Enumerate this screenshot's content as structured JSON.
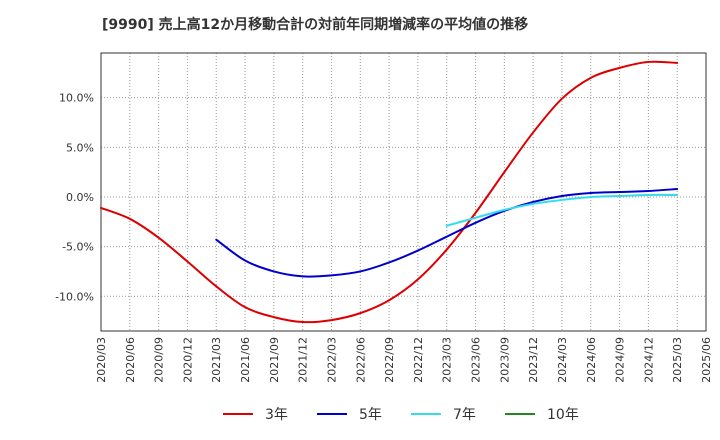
{
  "chart_data": {
    "type": "line",
    "title": "[9990]  売上高12か月移動合計の対前年同期増減率の平均値の推移",
    "xlabel": "",
    "ylabel": "",
    "ylim": [
      -13.5,
      14.5
    ],
    "yticks": [
      {
        "value": 10,
        "label": "10.0%"
      },
      {
        "value": 5,
        "label": "5.0%"
      },
      {
        "value": 0,
        "label": "0.0%"
      },
      {
        "value": -5,
        "label": "-5.0%"
      },
      {
        "value": -10,
        "label": "-10.0%"
      }
    ],
    "xticks": [
      "2020/03",
      "2020/06",
      "2020/09",
      "2020/12",
      "2021/03",
      "2021/06",
      "2021/09",
      "2021/12",
      "2022/03",
      "2022/06",
      "2022/09",
      "2022/12",
      "2023/03",
      "2023/06",
      "2023/09",
      "2023/12",
      "2024/03",
      "2024/06",
      "2024/09",
      "2024/12",
      "2025/03",
      "2025/06"
    ],
    "grid": true,
    "legend_position": "bottom",
    "series": [
      {
        "name": "3年",
        "color": "#dd0000",
        "points": [
          [
            "2020/03",
            -1.1
          ],
          [
            "2020/06",
            -2.2
          ],
          [
            "2020/09",
            -4.1
          ],
          [
            "2020/12",
            -6.5
          ],
          [
            "2021/03",
            -9.0
          ],
          [
            "2021/06",
            -11.1
          ],
          [
            "2021/09",
            -12.1
          ],
          [
            "2021/12",
            -12.6
          ],
          [
            "2022/03",
            -12.4
          ],
          [
            "2022/06",
            -11.7
          ],
          [
            "2022/09",
            -10.4
          ],
          [
            "2022/12",
            -8.3
          ],
          [
            "2023/03",
            -5.3
          ],
          [
            "2023/06",
            -1.6
          ],
          [
            "2023/09",
            2.5
          ],
          [
            "2023/12",
            6.5
          ],
          [
            "2024/03",
            9.9
          ],
          [
            "2024/06",
            12.0
          ],
          [
            "2024/09",
            13.0
          ],
          [
            "2024/12",
            13.6
          ],
          [
            "2025/03",
            13.5
          ]
        ]
      },
      {
        "name": "5年",
        "color": "#0000cc",
        "points": [
          [
            "2021/03",
            -4.3
          ],
          [
            "2021/06",
            -6.4
          ],
          [
            "2021/09",
            -7.5
          ],
          [
            "2021/12",
            -8.0
          ],
          [
            "2022/03",
            -7.9
          ],
          [
            "2022/06",
            -7.5
          ],
          [
            "2022/09",
            -6.6
          ],
          [
            "2022/12",
            -5.4
          ],
          [
            "2023/03",
            -4.0
          ],
          [
            "2023/06",
            -2.6
          ],
          [
            "2023/09",
            -1.4
          ],
          [
            "2023/12",
            -0.5
          ],
          [
            "2024/03",
            0.1
          ],
          [
            "2024/06",
            0.4
          ],
          [
            "2024/09",
            0.5
          ],
          [
            "2024/12",
            0.6
          ],
          [
            "2025/03",
            0.8
          ]
        ]
      },
      {
        "name": "7年",
        "color": "#33ddee",
        "points": [
          [
            "2023/03",
            -2.9
          ],
          [
            "2023/06",
            -2.1
          ],
          [
            "2023/09",
            -1.3
          ],
          [
            "2023/12",
            -0.7
          ],
          [
            "2024/03",
            -0.3
          ],
          [
            "2024/06",
            0.0
          ],
          [
            "2024/09",
            0.1
          ],
          [
            "2024/12",
            0.2
          ],
          [
            "2025/03",
            0.2
          ]
        ]
      },
      {
        "name": "10年",
        "color": "#228822",
        "points": []
      }
    ]
  }
}
